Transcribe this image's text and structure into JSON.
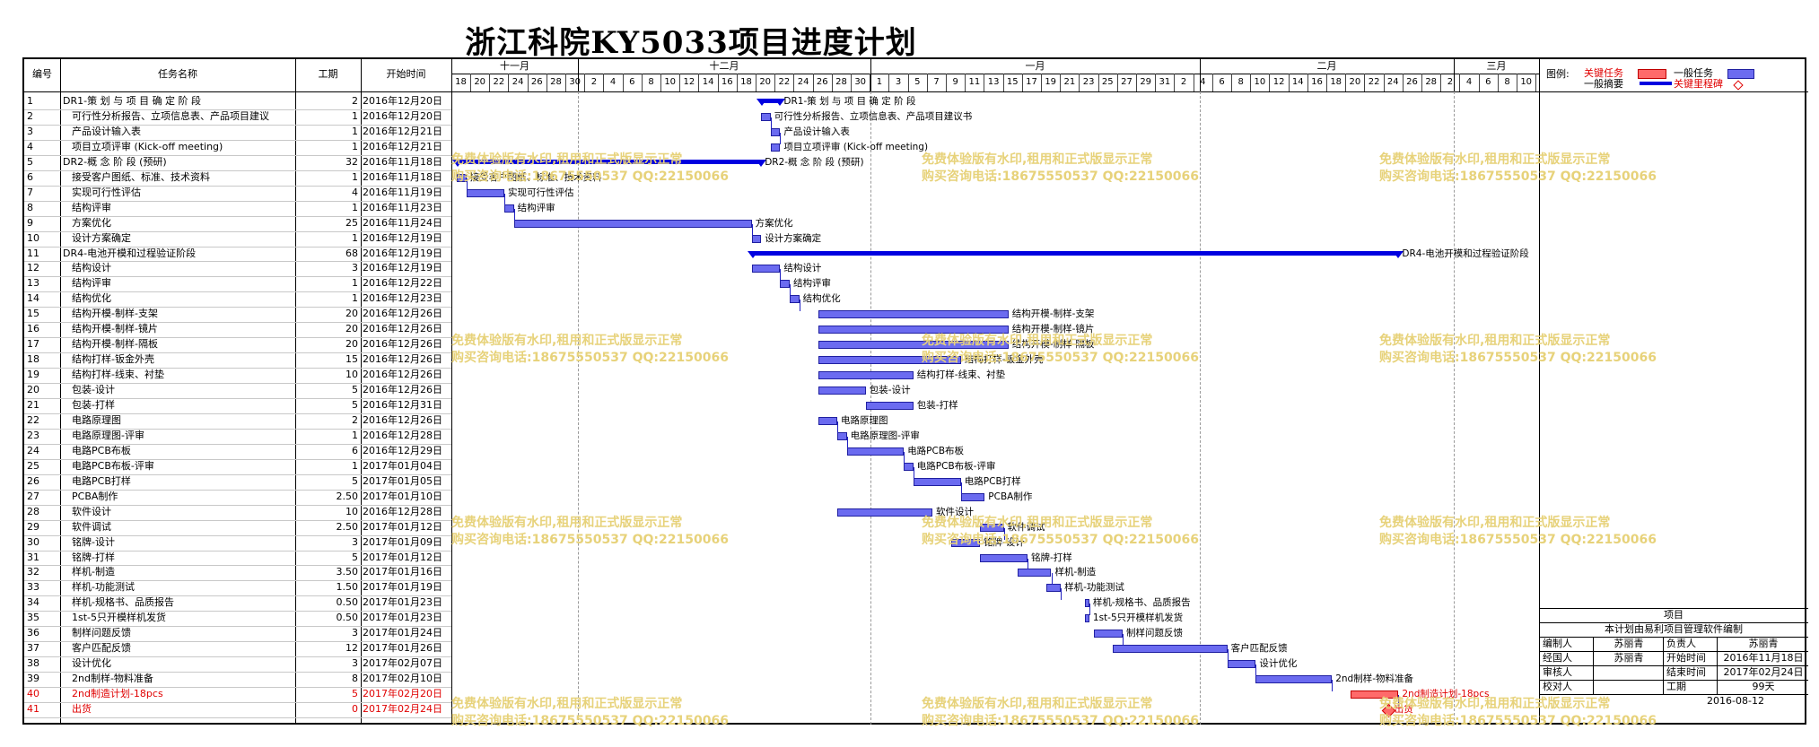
{
  "title": "浙江科院KY5033项目进度计划",
  "table_header": {
    "num": "编号",
    "name": "任务名称",
    "dur": "工期",
    "start": "开始时间"
  },
  "months": [
    "十一月",
    "十二月",
    "一月",
    "二月",
    "三月"
  ],
  "days": [
    "18",
    "20",
    "22",
    "24",
    "26",
    "28",
    "30",
    "2",
    "4",
    "6",
    "8",
    "10",
    "12",
    "14",
    "16",
    "18",
    "20",
    "22",
    "24",
    "26",
    "28",
    "30",
    "1",
    "3",
    "5",
    "7",
    "9",
    "11",
    "13",
    "15",
    "17",
    "19",
    "21",
    "23",
    "25",
    "27",
    "29",
    "31",
    "2",
    "4",
    "6",
    "8",
    "10",
    "12",
    "14",
    "16",
    "18",
    "20",
    "22",
    "24",
    "26",
    "28",
    "2",
    "4",
    "6",
    "8",
    "10"
  ],
  "tasks": [
    {
      "num": "1",
      "name": "DR1-策 划 与 项 目 确 定 阶 段",
      "dur": "2",
      "start": "2016年12月20日"
    },
    {
      "num": "2",
      "name": "可行性分析报告、立项信息表、产品项目建议",
      "dur": "1",
      "start": "2016年12月20日"
    },
    {
      "num": "3",
      "name": "产品设计输入表",
      "dur": "1",
      "start": "2016年12月21日"
    },
    {
      "num": "4",
      "name": "项目立项评审 (Kick-off meeting)",
      "dur": "1",
      "start": "2016年12月21日"
    },
    {
      "num": "5",
      "name": "DR2-概 念 阶 段 (预研)",
      "dur": "32",
      "start": "2016年11月18日"
    },
    {
      "num": "6",
      "name": "接受客户图纸、标准、技术资料",
      "dur": "1",
      "start": "2016年11月18日"
    },
    {
      "num": "7",
      "name": "实现可行性评估",
      "dur": "4",
      "start": "2016年11月19日"
    },
    {
      "num": "8",
      "name": "结构评审",
      "dur": "1",
      "start": "2016年11月23日"
    },
    {
      "num": "9",
      "name": "方案优化",
      "dur": "25",
      "start": "2016年11月24日"
    },
    {
      "num": "10",
      "name": "设计方案确定",
      "dur": "1",
      "start": "2016年12月19日"
    },
    {
      "num": "11",
      "name": "DR4-电池开模和过程验证阶段",
      "dur": "68",
      "start": "2016年12月19日"
    },
    {
      "num": "12",
      "name": "结构设计",
      "dur": "3",
      "start": "2016年12月19日"
    },
    {
      "num": "13",
      "name": "结构评审",
      "dur": "1",
      "start": "2016年12月22日"
    },
    {
      "num": "14",
      "name": "结构优化",
      "dur": "1",
      "start": "2016年12月23日"
    },
    {
      "num": "15",
      "name": "结构开模-制样-支架",
      "dur": "20",
      "start": "2016年12月26日"
    },
    {
      "num": "16",
      "name": "结构开模-制样-镜片",
      "dur": "20",
      "start": "2016年12月26日"
    },
    {
      "num": "17",
      "name": "结构开模-制样-隔板",
      "dur": "20",
      "start": "2016年12月26日"
    },
    {
      "num": "18",
      "name": "结构打样-钣金外壳",
      "dur": "15",
      "start": "2016年12月26日"
    },
    {
      "num": "19",
      "name": "结构打样-线束、衬垫",
      "dur": "10",
      "start": "2016年12月26日"
    },
    {
      "num": "20",
      "name": "包装-设计",
      "dur": "5",
      "start": "2016年12月26日"
    },
    {
      "num": "21",
      "name": "包装-打样",
      "dur": "5",
      "start": "2016年12月31日"
    },
    {
      "num": "22",
      "name": "电路原理图",
      "dur": "2",
      "start": "2016年12月26日"
    },
    {
      "num": "23",
      "name": "电路原理图-评审",
      "dur": "1",
      "start": "2016年12月28日"
    },
    {
      "num": "24",
      "name": "电路PCB布板",
      "dur": "6",
      "start": "2016年12月29日"
    },
    {
      "num": "25",
      "name": "电路PCB布板-评审",
      "dur": "1",
      "start": "2017年01月04日"
    },
    {
      "num": "26",
      "name": "电路PCB打样",
      "dur": "5",
      "start": "2017年01月05日"
    },
    {
      "num": "27",
      "name": "PCBA制作",
      "dur": "2.50",
      "start": "2017年01月10日"
    },
    {
      "num": "28",
      "name": "软件设计",
      "dur": "10",
      "start": "2016年12月28日"
    },
    {
      "num": "29",
      "name": "软件调试",
      "dur": "2.50",
      "start": "2017年01月12日"
    },
    {
      "num": "30",
      "name": "铭牌-设计",
      "dur": "3",
      "start": "2017年01月09日"
    },
    {
      "num": "31",
      "name": "铭牌-打样",
      "dur": "5",
      "start": "2017年01月12日"
    },
    {
      "num": "32",
      "name": "样机-制造",
      "dur": "3.50",
      "start": "2017年01月16日"
    },
    {
      "num": "33",
      "name": "样机-功能测试",
      "dur": "1.50",
      "start": "2017年01月19日"
    },
    {
      "num": "34",
      "name": "样机-规格书、品质报告",
      "dur": "0.50",
      "start": "2017年01月23日"
    },
    {
      "num": "35",
      "name": "1st-5只开模样机发货",
      "dur": "0.50",
      "start": "2017年01月23日"
    },
    {
      "num": "36",
      "name": "制样问题反馈",
      "dur": "3",
      "start": "2017年01月24日"
    },
    {
      "num": "37",
      "name": "客户匹配反馈",
      "dur": "12",
      "start": "2017年01月26日"
    },
    {
      "num": "38",
      "name": "设计优化",
      "dur": "3",
      "start": "2017年02月07日"
    },
    {
      "num": "39",
      "name": "2nd制样-物料准备",
      "dur": "8",
      "start": "2017年02月10日"
    },
    {
      "num": "40",
      "name": "2nd制造计划-18pcs",
      "dur": "5",
      "start": "2017年02月20日"
    },
    {
      "num": "41",
      "name": "出货",
      "dur": "0",
      "start": "2017年02月24日"
    }
  ],
  "gantt_labels": [
    "DR1-策 划 与 项 目 确 定 阶 段",
    "可行性分析报告、立项信息表、产品项目建议书",
    "产品设计输入表",
    "项目立项评审 (Kick-off meeting)",
    "DR2-概 念 阶 段 (预研)",
    "接受客户图纸、标准、技术资料",
    "实现可行性评估",
    "结构评审",
    "方案优化",
    "设计方案确定",
    "DR4-电池开模和过程验证阶段",
    "结构设计",
    "结构评审",
    "结构优化",
    "结构开模-制样-支架",
    "结构开模-制样-镜片",
    "结构开模-制样-隔板",
    "结构打样-钣金外壳",
    "结构打样-线束、衬垫",
    "包装-设计",
    "包装-打样",
    "电路原理图",
    "电路原理图-评审",
    "电路PCB布板",
    "电路PCB布板-评审",
    "电路PCB打样",
    "PCBA制作",
    "软件设计",
    "软件调试",
    "铭牌-设计",
    "铭牌-打样",
    "样机-制造",
    "样机-功能测试",
    "样机-规格书、品质报告",
    "1st-5只开模样机发货",
    "制样问题反馈",
    "客户匹配反馈",
    "设计优化",
    "2nd制样-物料准备",
    "2nd制造计划-18pcs",
    "出货"
  ],
  "legend": {
    "title": "图例:",
    "critical": "关键任务",
    "normal": "一般任务",
    "summary": "一般摘要",
    "milestone": "关键里程碑",
    "critical_color": "#ff6a6a",
    "normal_color": "#6b6bf0",
    "summary_color": "#0000e0"
  },
  "info": {
    "header": "项目",
    "subtitle": "本计划由易利项目管理软件编制",
    "rows": [
      [
        "编制人",
        "苏丽青",
        "负责人",
        "苏丽青"
      ],
      [
        "经国人",
        "苏丽青",
        "开始时间",
        "2016年11月18日"
      ],
      [
        "审核人",
        "",
        "结束时间",
        "2017年02月24日"
      ],
      [
        "校对人",
        "",
        "工期",
        "99天"
      ]
    ],
    "date": "2016-08-12"
  },
  "watermark": {
    "line1": "免费体验版有水印,租用和正式版显示正常",
    "line2": "购买咨询电话:18675550537 QQ:22150066"
  }
}
